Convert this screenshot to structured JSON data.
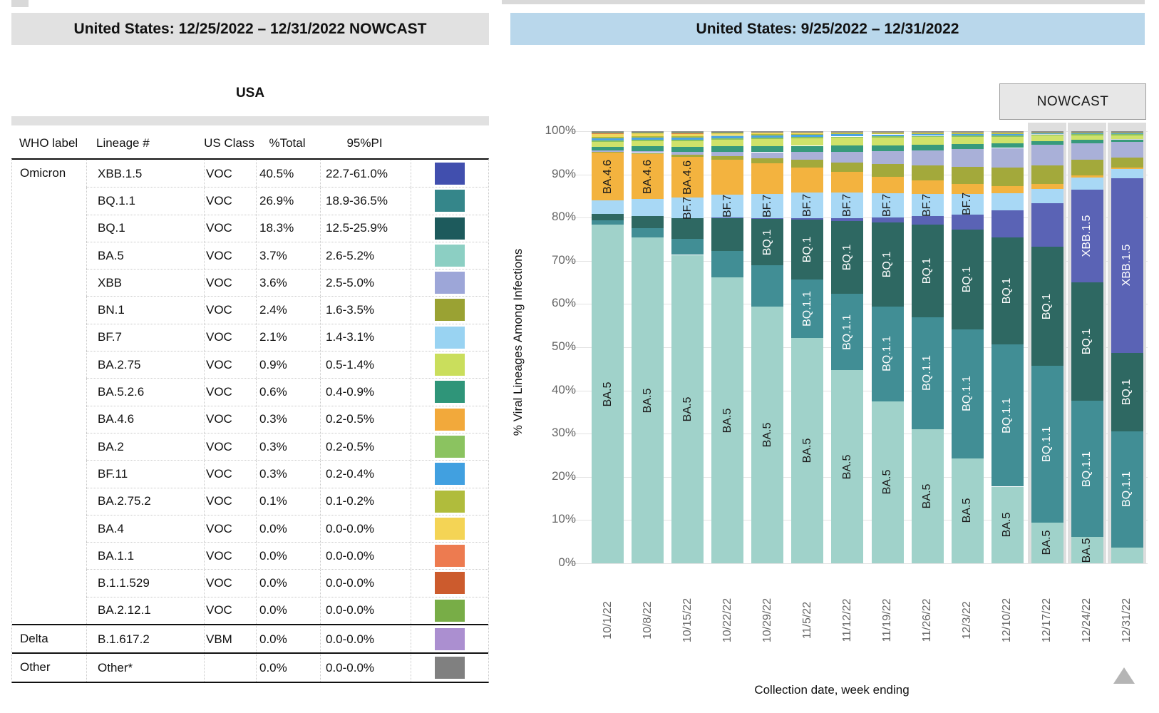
{
  "left_panel": {
    "title": "United States: 12/25/2022 – 12/31/2022 NOWCAST",
    "subtitle": "USA",
    "columns": [
      "WHO label",
      "Lineage #",
      "US Class",
      "%Total",
      "95%PI"
    ],
    "rows": [
      {
        "who": "Omicron",
        "lineage": "XBB.1.5",
        "us_class": "VOC",
        "total": "40.5%",
        "pi": "22.7-61.0%",
        "color": "#414fae"
      },
      {
        "who": "",
        "lineage": "BQ.1.1",
        "us_class": "VOC",
        "total": "26.9%",
        "pi": "18.9-36.5%",
        "color": "#35868a"
      },
      {
        "who": "",
        "lineage": "BQ.1",
        "us_class": "VOC",
        "total": "18.3%",
        "pi": "12.5-25.9%",
        "color": "#1d5a5c"
      },
      {
        "who": "",
        "lineage": "BA.5",
        "us_class": "VOC",
        "total": "3.7%",
        "pi": "2.6-5.2%",
        "color": "#8ccfc3"
      },
      {
        "who": "",
        "lineage": "XBB",
        "us_class": "VOC",
        "total": "3.6%",
        "pi": "2.5-5.0%",
        "color": "#9da6d8"
      },
      {
        "who": "",
        "lineage": "BN.1",
        "us_class": "VOC",
        "total": "2.4%",
        "pi": "1.6-3.5%",
        "color": "#9aa233"
      },
      {
        "who": "",
        "lineage": "BF.7",
        "us_class": "VOC",
        "total": "2.1%",
        "pi": "1.4-3.1%",
        "color": "#99d3f2"
      },
      {
        "who": "",
        "lineage": "BA.2.75",
        "us_class": "VOC",
        "total": "0.9%",
        "pi": "0.5-1.4%",
        "color": "#cade5c"
      },
      {
        "who": "",
        "lineage": "BA.5.2.6",
        "us_class": "VOC",
        "total": "0.6%",
        "pi": "0.4-0.9%",
        "color": "#2f9579"
      },
      {
        "who": "",
        "lineage": "BA.4.6",
        "us_class": "VOC",
        "total": "0.3%",
        "pi": "0.2-0.5%",
        "color": "#f2a93b"
      },
      {
        "who": "",
        "lineage": "BA.2",
        "us_class": "VOC",
        "total": "0.3%",
        "pi": "0.2-0.5%",
        "color": "#8bc360"
      },
      {
        "who": "",
        "lineage": "BF.11",
        "us_class": "VOC",
        "total": "0.3%",
        "pi": "0.2-0.4%",
        "color": "#41a0e0"
      },
      {
        "who": "",
        "lineage": "BA.2.75.2",
        "us_class": "VOC",
        "total": "0.1%",
        "pi": "0.1-0.2%",
        "color": "#b0bc3c"
      },
      {
        "who": "",
        "lineage": "BA.4",
        "us_class": "VOC",
        "total": "0.0%",
        "pi": "0.0-0.0%",
        "color": "#f4d455"
      },
      {
        "who": "",
        "lineage": "BA.1.1",
        "us_class": "VOC",
        "total": "0.0%",
        "pi": "0.0-0.0%",
        "color": "#ed7b50"
      },
      {
        "who": "",
        "lineage": "B.1.1.529",
        "us_class": "VOC",
        "total": "0.0%",
        "pi": "0.0-0.0%",
        "color": "#cc5b2d"
      },
      {
        "who": "",
        "lineage": "BA.2.12.1",
        "us_class": "VOC",
        "total": "0.0%",
        "pi": "0.0-0.0%",
        "color": "#78ad47"
      },
      {
        "who": "Delta",
        "lineage": "B.1.617.2",
        "us_class": "VBM",
        "total": "0.0%",
        "pi": "0.0-0.0%",
        "color": "#ab8fd0",
        "sep": true
      },
      {
        "who": "Other",
        "lineage": "Other*",
        "us_class": "",
        "total": "0.0%",
        "pi": "0.0-0.0%",
        "color": "#808080",
        "sep": true
      }
    ]
  },
  "right_panel": {
    "title": "United States: 9/25/2022 – 12/31/2022",
    "nowcast_label": "NOWCAST",
    "title_bg": "#b9d7eb",
    "nowcast_region_color": "#dedede"
  },
  "chart_data": {
    "type": "bar",
    "stacked": true,
    "title": "United States: 9/25/2022 – 12/31/2022",
    "xlabel": "Collection date, week ending",
    "ylabel": "% Viral Lineages Among Infections",
    "ylim": [
      0,
      100
    ],
    "ytick_step": 10,
    "grid": true,
    "x": [
      "10/1/22",
      "10/8/22",
      "10/15/22",
      "10/22/22",
      "10/29/22",
      "11/5/22",
      "11/12/22",
      "11/19/22",
      "11/26/22",
      "12/3/22",
      "12/10/22",
      "12/17/22",
      "12/24/22",
      "12/31/22"
    ],
    "nowcast_weeks": [
      "12/17/22",
      "12/24/22",
      "12/31/22"
    ],
    "series": [
      {
        "name": "BA.5",
        "color": "#a0d2ca",
        "label_min": 5,
        "label_color": "#1a1a1a",
        "values": [
          79.2,
          74.7,
          70.0,
          65.5,
          58.5,
          51.0,
          43.0,
          35.5,
          29.0,
          22.5,
          16.5,
          9.0,
          6.0,
          3.7
        ]
      },
      {
        "name": "BQ.1.1",
        "color": "#418e95",
        "label_min": 12,
        "label_color": "#ffffff",
        "values": [
          1.1,
          2.1,
          3.6,
          6.0,
          9.4,
          13.2,
          17.0,
          20.8,
          24.2,
          27.6,
          30.6,
          34.6,
          31.0,
          26.9
        ]
      },
      {
        "name": "BQ.1",
        "color": "#2e6862",
        "label_min": 10,
        "label_color": "#ffffff",
        "values": [
          1.4,
          2.8,
          4.8,
          7.6,
          10.5,
          13.5,
          16.2,
          18.4,
          20.0,
          21.4,
          23.0,
          26.2,
          27.0,
          18.3
        ]
      },
      {
        "name": "XBB.1.5",
        "color": "#5a63b5",
        "label_min": 15,
        "label_color": "#ffffff",
        "values": [
          0,
          0,
          0,
          0.1,
          0.2,
          0.4,
          0.7,
          1.1,
          1.8,
          3.2,
          5.8,
          9.6,
          21.0,
          40.5
        ]
      },
      {
        "name": "BF.7",
        "color": "#a8d8f5",
        "label_min": 4.5,
        "label_color": "#1a1a1a",
        "values": [
          3.2,
          3.9,
          4.6,
          5.2,
          5.6,
          5.7,
          5.6,
          5.3,
          4.9,
          4.4,
          3.8,
          3.2,
          2.7,
          2.1
        ]
      },
      {
        "name": "BA.4.6",
        "color": "#f3b33f",
        "label_min": 9,
        "label_color": "#1a1a1a",
        "values": [
          11.2,
          10.3,
          9.3,
          8.1,
          6.9,
          5.7,
          4.6,
          3.6,
          2.8,
          2.1,
          1.5,
          1.0,
          0.6,
          0.3
        ]
      },
      {
        "name": "BN.1",
        "color": "#a3a93b",
        "values": [
          0.2,
          0.3,
          0.5,
          0.8,
          1.2,
          1.7,
          2.2,
          2.8,
          3.3,
          3.7,
          4.0,
          4.2,
          3.5,
          2.4
        ]
      },
      {
        "name": "XBB",
        "color": "#a9b0d8",
        "values": [
          0.3,
          0.4,
          0.6,
          0.9,
          1.3,
          1.8,
          2.3,
          2.8,
          3.3,
          3.8,
          4.2,
          4.5,
          3.8,
          3.6
        ]
      },
      {
        "name": "BA.5.2.6",
        "color": "#379a7c",
        "values": [
          0.9,
          1.1,
          1.2,
          1.3,
          1.4,
          1.4,
          1.4,
          1.3,
          1.2,
          1.1,
          1.0,
          0.8,
          0.7,
          0.6
        ]
      },
      {
        "name": "BA.2.75",
        "color": "#cfe26a",
        "values": [
          1.1,
          1.2,
          1.3,
          1.5,
          1.6,
          1.7,
          1.7,
          1.7,
          1.6,
          1.5,
          1.4,
          1.2,
          1.0,
          0.9
        ]
      },
      {
        "name": "BA.2",
        "color": "#8bc360",
        "values": [
          0.3,
          0.3,
          0.3,
          0.3,
          0.3,
          0.3,
          0.3,
          0.3,
          0.3,
          0.3,
          0.3,
          0.3,
          0.3,
          0.3
        ]
      },
      {
        "name": "BF.11",
        "color": "#4aa3e3",
        "values": [
          0.5,
          0.5,
          0.5,
          0.5,
          0.5,
          0.5,
          0.5,
          0.4,
          0.4,
          0.4,
          0.4,
          0.3,
          0.3,
          0.3
        ]
      },
      {
        "name": "BA.2.75.2",
        "color": "#b0bc3c",
        "values": [
          0.3,
          0.3,
          0.3,
          0.3,
          0.3,
          0.2,
          0.2,
          0.2,
          0.2,
          0.1,
          0.1,
          0.1,
          0.1,
          0.1
        ]
      },
      {
        "name": "BA.4",
        "color": "#f0d75e",
        "values": [
          0.8,
          0.7,
          0.6,
          0.5,
          0.4,
          0.3,
          0.2,
          0.2,
          0.1,
          0.1,
          0.1,
          0,
          0,
          0
        ]
      },
      {
        "name": "BA.1.1",
        "color": "#ed7b50",
        "values": [
          0.1,
          0.1,
          0.1,
          0,
          0,
          0,
          0,
          0,
          0,
          0,
          0,
          0,
          0,
          0
        ]
      },
      {
        "name": "B.1.1.529",
        "color": "#cc5b2d",
        "values": [
          0,
          0,
          0,
          0,
          0,
          0,
          0,
          0,
          0,
          0,
          0,
          0,
          0,
          0
        ]
      },
      {
        "name": "BA.2.12.1",
        "color": "#78ad47",
        "values": [
          0.2,
          0.1,
          0.1,
          0.1,
          0,
          0,
          0,
          0,
          0,
          0,
          0,
          0,
          0,
          0
        ]
      },
      {
        "name": "B.1.617.2",
        "color": "#ab8fd0",
        "values": [
          0,
          0,
          0,
          0,
          0,
          0,
          0,
          0,
          0,
          0,
          0,
          0,
          0,
          0
        ]
      },
      {
        "name": "Other",
        "color": "#8c8c8c",
        "values": [
          0.3,
          0.3,
          0.3,
          0.3,
          0.3,
          0.3,
          0.3,
          0.3,
          0.3,
          0.3,
          0.3,
          0.3,
          0.3,
          0.3
        ]
      }
    ]
  }
}
